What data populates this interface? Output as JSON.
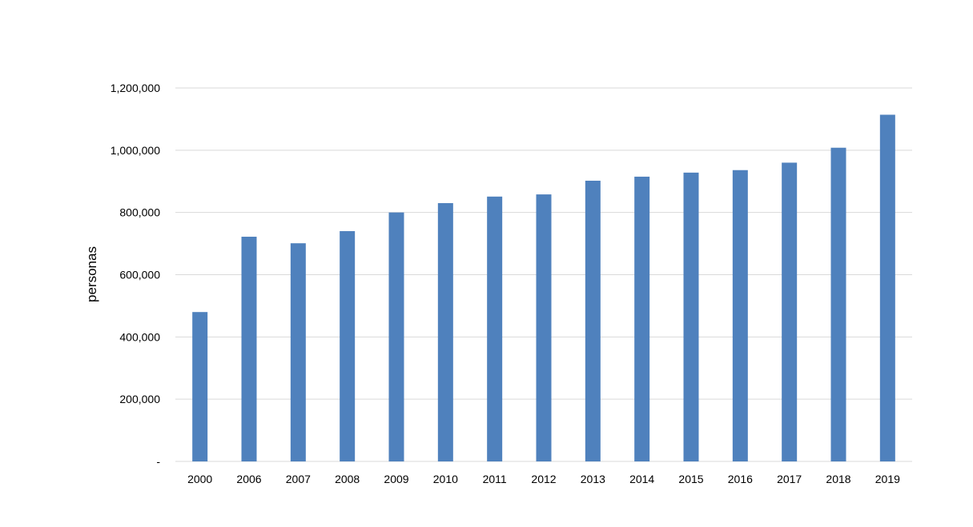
{
  "chart_data": {
    "type": "bar",
    "title": "",
    "xlabel": "",
    "ylabel": "personas",
    "categories": [
      "2000",
      "2006",
      "2007",
      "2008",
      "2009",
      "2010",
      "2011",
      "2012",
      "2013",
      "2014",
      "2015",
      "2016",
      "2017",
      "2018",
      "2019"
    ],
    "values": [
      480000,
      722000,
      701000,
      740000,
      800000,
      830000,
      851000,
      858000,
      902000,
      915000,
      928000,
      936000,
      960000,
      1008000,
      1114000
    ],
    "ylim": [
      0,
      1200000
    ],
    "yticks": [
      0,
      200000,
      400000,
      600000,
      800000,
      1000000,
      1200000
    ],
    "ytick_labels": [
      "-",
      "200,000",
      "400,000",
      "600,000",
      "800,000",
      "1,000,000",
      "1,200,000"
    ],
    "grid": "horizontal",
    "legend": "none",
    "bar_color": "#4f81bd",
    "grid_color": "#d9d9d9"
  }
}
